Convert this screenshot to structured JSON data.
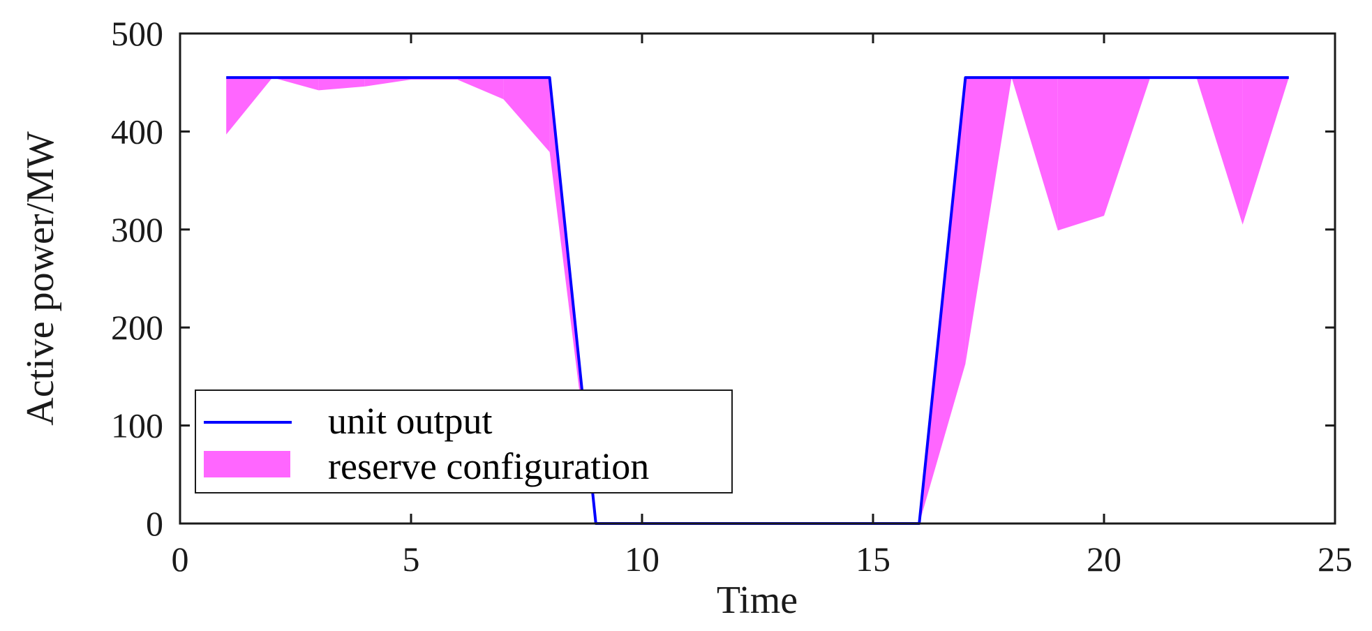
{
  "chart_data": {
    "type": "area",
    "xlabel": "Time",
    "ylabel": "Active power/MW",
    "xlim": [
      0,
      25
    ],
    "ylim": [
      0,
      500
    ],
    "xticks": [
      0,
      5,
      10,
      15,
      20,
      25
    ],
    "yticks": [
      0,
      100,
      200,
      300,
      400,
      500
    ],
    "grid": false,
    "legend_position": "bottom-left",
    "x": [
      1,
      2,
      3,
      4,
      5,
      6,
      7,
      8,
      9,
      10,
      11,
      12,
      13,
      14,
      15,
      16,
      17,
      18,
      19,
      20,
      21,
      22,
      23,
      24
    ],
    "series": [
      {
        "name": "unit output",
        "kind": "line",
        "color": "#0000ff",
        "values": [
          455,
          455,
          455,
          455,
          455,
          455,
          455,
          455,
          0,
          0,
          0,
          0,
          0,
          0,
          0,
          0,
          455,
          455,
          455,
          455,
          455,
          455,
          455,
          455
        ]
      },
      {
        "name": "reserve configuration",
        "kind": "fill",
        "color": "#ff66ff",
        "upper": [
          455,
          455,
          455,
          455,
          455,
          455,
          455,
          455,
          0,
          0,
          0,
          0,
          0,
          0,
          0,
          0,
          455,
          455,
          455,
          455,
          455,
          455,
          455,
          455
        ],
        "lower": [
          397,
          455,
          442,
          446,
          453,
          453,
          433,
          379,
          0,
          0,
          0,
          0,
          0,
          0,
          0,
          0,
          163,
          455,
          299,
          314,
          455,
          455,
          305,
          455
        ]
      }
    ]
  }
}
